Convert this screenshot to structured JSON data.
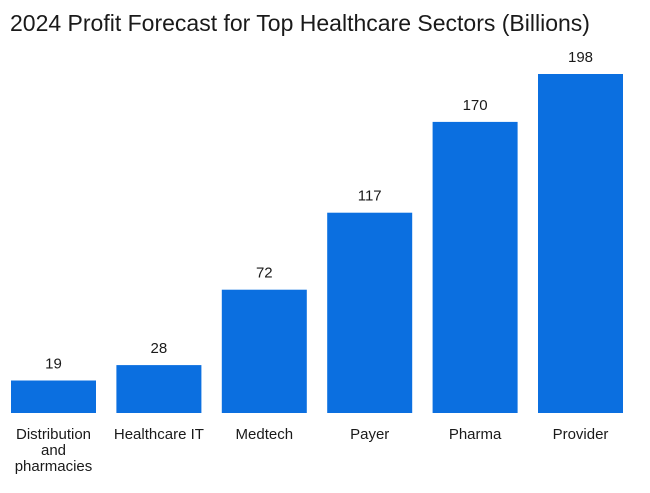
{
  "chart_data": {
    "type": "bar",
    "title": "2024 Profit Forecast for Top Healthcare Sectors (Billions)",
    "xlabel": "",
    "ylabel": "",
    "categories": [
      "Distribution and pharmacies",
      "Healthcare IT",
      "Medtech",
      "Payer",
      "Pharma",
      "Provider"
    ],
    "category_display": [
      [
        "Distribution",
        "and",
        "pharmacies"
      ],
      [
        "Healthcare IT"
      ],
      [
        "Medtech"
      ],
      [
        "Payer"
      ],
      [
        "Pharma"
      ],
      [
        "Provider"
      ]
    ],
    "values": [
      19,
      28,
      72,
      117,
      170,
      198
    ],
    "ylim": [
      0,
      198
    ],
    "grid": false,
    "legend": "none",
    "bar_color": "#0b6fe0"
  }
}
